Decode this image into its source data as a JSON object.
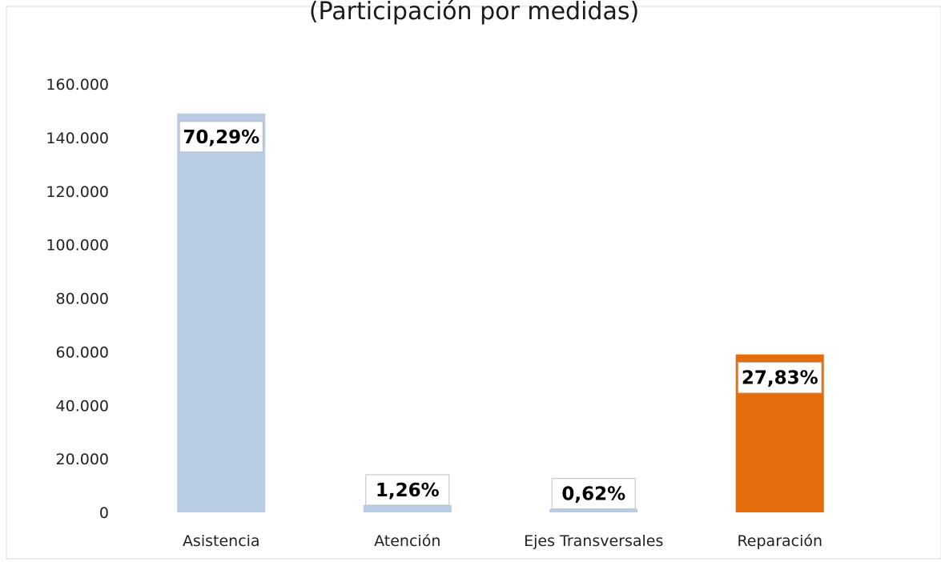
{
  "chart_data": {
    "type": "bar",
    "title": "(Participación por medidas)",
    "xlabel": "",
    "ylabel": "",
    "categories": [
      "Asistencia",
      "Atención",
      "Ejes Transversales",
      "Reparación"
    ],
    "series": [
      {
        "values": [
          149000,
          2700,
          1300,
          59000
        ],
        "data_labels": [
          "70,29%",
          "1,26%",
          "0,62%",
          "27,83%"
        ],
        "colors": [
          "#b8cce4",
          "#b8cce4",
          "#b8cce4",
          "#e46c0a"
        ]
      }
    ],
    "ylim": [
      0,
      160000
    ],
    "yticks": [
      0,
      20000,
      40000,
      60000,
      80000,
      100000,
      120000,
      140000,
      160000
    ],
    "ytick_labels": [
      "0",
      "20.000",
      "40.000",
      "60.000",
      "80.000",
      "100.000",
      "120.000",
      "140.000",
      "160.000"
    ],
    "grid": false,
    "legend": "none"
  }
}
